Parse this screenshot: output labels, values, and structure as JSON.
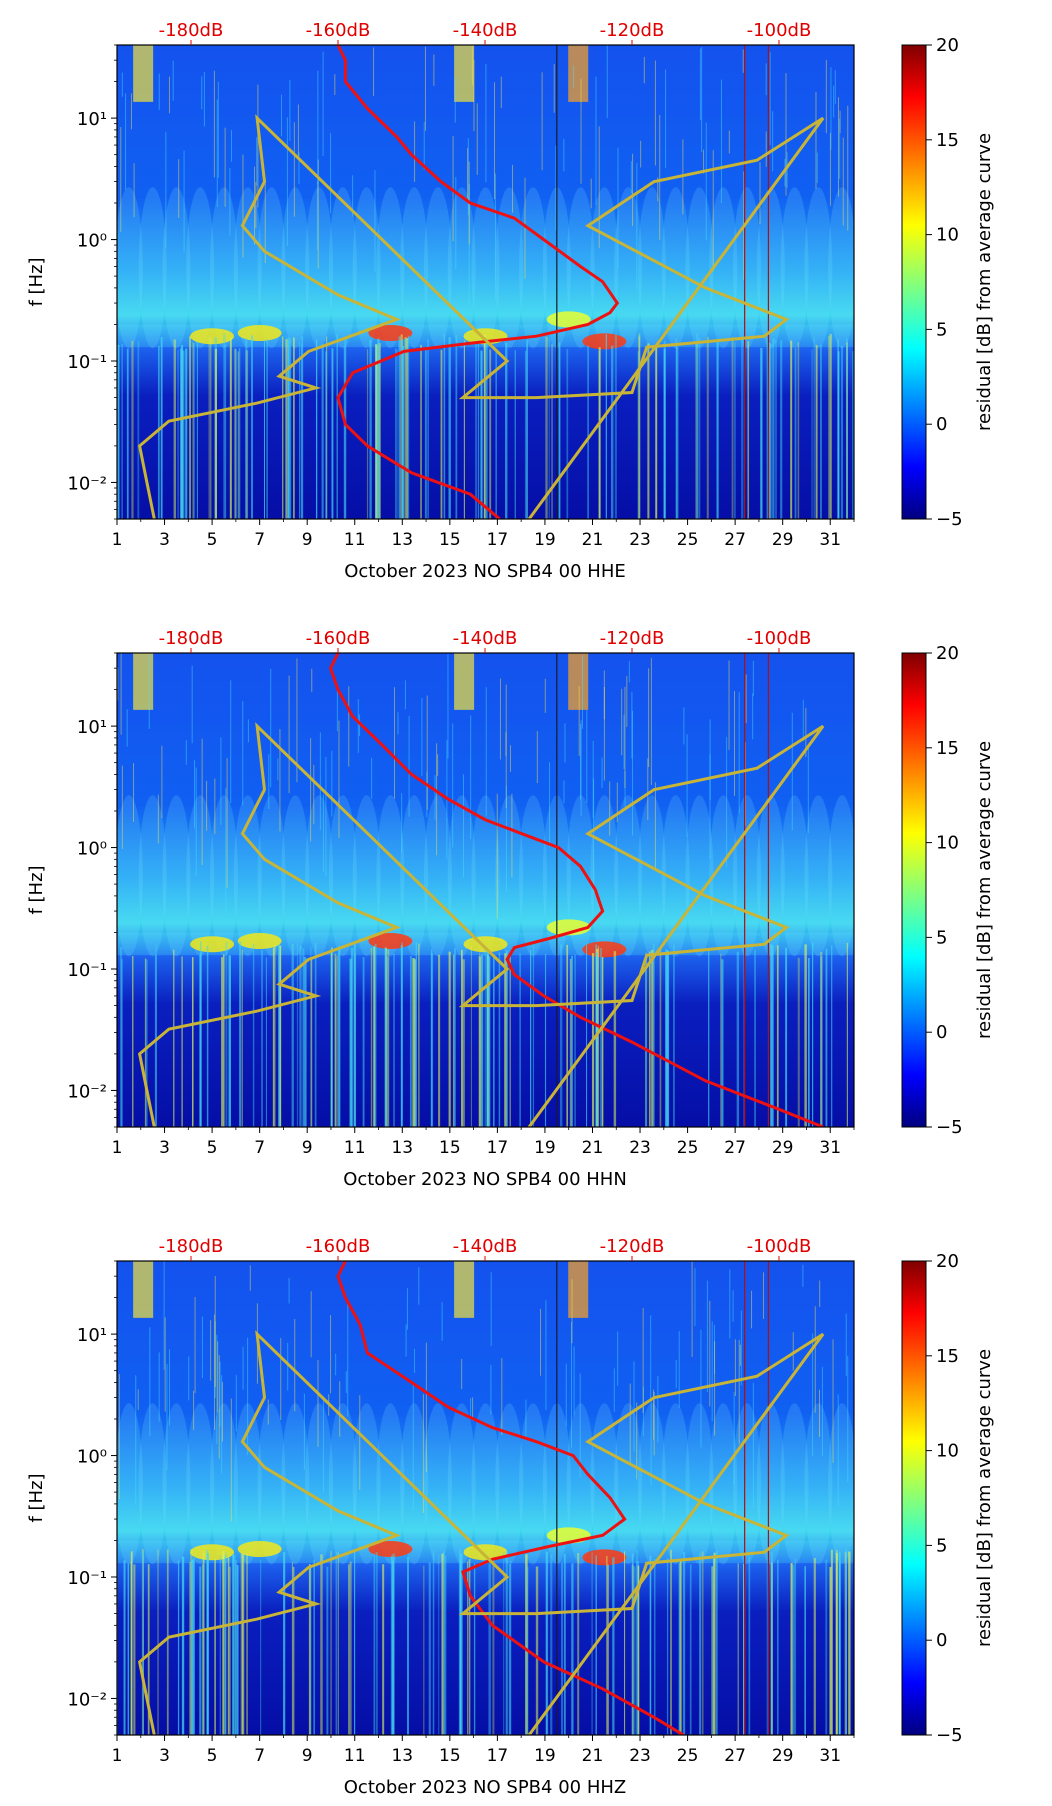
{
  "chart_data": [
    {
      "type": "heatmap",
      "xlabel": "October 2023 NO SPB4 00 HHE",
      "ylabel": "f [Hz]",
      "xlim": [
        1,
        32
      ],
      "ylim_hz": [
        0.005,
        40
      ],
      "x_ticks": [
        "1",
        "3",
        "5",
        "7",
        "9",
        "11",
        "13",
        "15",
        "17",
        "19",
        "21",
        "23",
        "25",
        "27",
        "29",
        "31"
      ],
      "y_ticks": [
        "10⁻²",
        "10⁻¹",
        "10⁰",
        "10¹"
      ],
      "top_ticks": [
        "-180dB",
        "-160dB",
        "-140dB",
        "-120dB",
        "-100dB"
      ],
      "colorbar": {
        "label": "residual [dB] from average curve",
        "range": [
          -5,
          20
        ],
        "ticks": [
          "−5",
          "0",
          "5",
          "10",
          "15",
          "20"
        ]
      },
      "series": [
        {
          "name": "red_average_curve_dB",
          "points": [
            [
              -160,
              40
            ],
            [
              -159,
              30
            ],
            [
              -159,
              20
            ],
            [
              -156,
              12
            ],
            [
              -152,
              7
            ],
            [
              -150,
              5
            ],
            [
              -146,
              3
            ],
            [
              -142,
              2
            ],
            [
              -136,
              1.5
            ],
            [
              -132,
              1
            ],
            [
              -127,
              0.6
            ],
            [
              -124,
              0.45
            ],
            [
              -122,
              0.3
            ],
            [
              -123,
              0.25
            ],
            [
              -126,
              0.2
            ],
            [
              -133,
              0.16
            ],
            [
              -142,
              0.14
            ],
            [
              -151,
              0.12
            ],
            [
              -158,
              0.08
            ],
            [
              -160,
              0.05
            ],
            [
              -159,
              0.03
            ],
            [
              -156,
              0.02
            ],
            [
              -150,
              0.012
            ],
            [
              -142,
              0.008
            ],
            [
              -138,
              0.005
            ]
          ]
        },
        {
          "name": "yellow_noise_model_dB",
          "points": [
            [
              -185,
              0.005
            ],
            [
              -186,
              0.01
            ],
            [
              -187,
              0.02
            ],
            [
              -183,
              0.032
            ],
            [
              -171,
              0.045
            ],
            [
              -163,
              0.06
            ],
            [
              -168,
              0.075
            ],
            [
              -164,
              0.12
            ],
            [
              -152,
              0.22
            ],
            [
              -160,
              0.35
            ],
            [
              -170,
              0.8
            ],
            [
              -173,
              1.3
            ],
            [
              -170,
              3
            ],
            [
              -171,
              10
            ],
            [
              -137,
              0.1
            ],
            [
              -143,
              0.05
            ],
            [
              -133,
              0.05
            ],
            [
              -120,
              0.055
            ],
            [
              -118,
              0.13
            ],
            [
              -102,
              0.16
            ],
            [
              -99,
              0.22
            ],
            [
              -110,
              0.4
            ],
            [
              -126,
              1.3
            ],
            [
              -117,
              3
            ],
            [
              -103,
              4.5
            ],
            [
              -94,
              10
            ],
            [
              -134,
              0.005
            ]
          ]
        }
      ]
    },
    {
      "type": "heatmap",
      "xlabel": "October 2023 NO SPB4 00 HHN",
      "ylabel": "f [Hz]",
      "xlim": [
        1,
        32
      ],
      "ylim_hz": [
        0.005,
        40
      ],
      "x_ticks": [
        "1",
        "3",
        "5",
        "7",
        "9",
        "11",
        "13",
        "15",
        "17",
        "19",
        "21",
        "23",
        "25",
        "27",
        "29",
        "31"
      ],
      "y_ticks": [
        "10⁻²",
        "10⁻¹",
        "10⁰",
        "10¹"
      ],
      "top_ticks": [
        "-180dB",
        "-160dB",
        "-140dB",
        "-120dB",
        "-100dB"
      ],
      "colorbar": {
        "label": "residual [dB] from average curve",
        "range": [
          -5,
          20
        ],
        "ticks": [
          "−5",
          "0",
          "5",
          "10",
          "15",
          "20"
        ]
      },
      "series": [
        {
          "name": "red_average_curve_dB",
          "points": [
            [
              -160,
              40
            ],
            [
              -161,
              30
            ],
            [
              -160,
              20
            ],
            [
              -158,
              12
            ],
            [
              -154,
              7
            ],
            [
              -150,
              4
            ],
            [
              -145,
              2.5
            ],
            [
              -140,
              1.7
            ],
            [
              -135,
              1.3
            ],
            [
              -130,
              1
            ],
            [
              -127,
              0.7
            ],
            [
              -125,
              0.45
            ],
            [
              -124,
              0.3
            ],
            [
              -126,
              0.22
            ],
            [
              -131,
              0.18
            ],
            [
              -136,
              0.15
            ],
            [
              -137,
              0.12
            ],
            [
              -136,
              0.09
            ],
            [
              -132,
              0.06
            ],
            [
              -127,
              0.04
            ],
            [
              -120,
              0.025
            ],
            [
              -110,
              0.012
            ],
            [
              -100,
              0.007
            ],
            [
              -94,
              0.005
            ]
          ]
        },
        {
          "name": "yellow_noise_model_dB",
          "points": [
            [
              -185,
              0.005
            ],
            [
              -186,
              0.01
            ],
            [
              -187,
              0.02
            ],
            [
              -183,
              0.032
            ],
            [
              -171,
              0.045
            ],
            [
              -163,
              0.06
            ],
            [
              -168,
              0.075
            ],
            [
              -164,
              0.12
            ],
            [
              -152,
              0.22
            ],
            [
              -160,
              0.35
            ],
            [
              -170,
              0.8
            ],
            [
              -173,
              1.3
            ],
            [
              -170,
              3
            ],
            [
              -171,
              10
            ],
            [
              -137,
              0.1
            ],
            [
              -143,
              0.05
            ],
            [
              -133,
              0.05
            ],
            [
              -120,
              0.055
            ],
            [
              -118,
              0.13
            ],
            [
              -102,
              0.16
            ],
            [
              -99,
              0.22
            ],
            [
              -110,
              0.4
            ],
            [
              -126,
              1.3
            ],
            [
              -117,
              3
            ],
            [
              -103,
              4.5
            ],
            [
              -94,
              10
            ],
            [
              -134,
              0.005
            ]
          ]
        }
      ]
    },
    {
      "type": "heatmap",
      "xlabel": "October 2023 NO SPB4 00 HHZ",
      "ylabel": "f [Hz]",
      "xlim": [
        1,
        32
      ],
      "ylim_hz": [
        0.005,
        40
      ],
      "x_ticks": [
        "1",
        "3",
        "5",
        "7",
        "9",
        "11",
        "13",
        "15",
        "17",
        "19",
        "21",
        "23",
        "25",
        "27",
        "29",
        "31"
      ],
      "y_ticks": [
        "10⁻²",
        "10⁻¹",
        "10⁰",
        "10¹"
      ],
      "top_ticks": [
        "-180dB",
        "-160dB",
        "-140dB",
        "-120dB",
        "-100dB"
      ],
      "colorbar": {
        "label": "residual [dB] from average curve",
        "range": [
          -5,
          20
        ],
        "ticks": [
          "−5",
          "0",
          "5",
          "10",
          "15",
          "20"
        ]
      },
      "series": [
        {
          "name": "red_average_curve_dB",
          "points": [
            [
              -159,
              40
            ],
            [
              -160,
              30
            ],
            [
              -159,
              20
            ],
            [
              -157,
              12
            ],
            [
              -156,
              7
            ],
            [
              -150,
              4
            ],
            [
              -145,
              2.5
            ],
            [
              -139,
              1.7
            ],
            [
              -133,
              1.3
            ],
            [
              -128,
              1
            ],
            [
              -126,
              0.7
            ],
            [
              -123,
              0.45
            ],
            [
              -121,
              0.3
            ],
            [
              -124,
              0.22
            ],
            [
              -131,
              0.18
            ],
            [
              -139,
              0.14
            ],
            [
              -143,
              0.11
            ],
            [
              -142,
              0.07
            ],
            [
              -139,
              0.04
            ],
            [
              -132,
              0.02
            ],
            [
              -124,
              0.012
            ],
            [
              -117,
              0.007
            ],
            [
              -113,
              0.005
            ]
          ]
        },
        {
          "name": "yellow_noise_model_dB",
          "points": [
            [
              -185,
              0.005
            ],
            [
              -186,
              0.01
            ],
            [
              -187,
              0.02
            ],
            [
              -183,
              0.032
            ],
            [
              -171,
              0.045
            ],
            [
              -163,
              0.06
            ],
            [
              -168,
              0.075
            ],
            [
              -164,
              0.12
            ],
            [
              -152,
              0.22
            ],
            [
              -160,
              0.35
            ],
            [
              -170,
              0.8
            ],
            [
              -173,
              1.3
            ],
            [
              -170,
              3
            ],
            [
              -171,
              10
            ],
            [
              -137,
              0.1
            ],
            [
              -143,
              0.05
            ],
            [
              -133,
              0.05
            ],
            [
              -120,
              0.055
            ],
            [
              -118,
              0.13
            ],
            [
              -102,
              0.16
            ],
            [
              -99,
              0.22
            ],
            [
              -110,
              0.4
            ],
            [
              -126,
              1.3
            ],
            [
              -117,
              3
            ],
            [
              -103,
              4.5
            ],
            [
              -94,
              10
            ],
            [
              -134,
              0.005
            ]
          ]
        }
      ]
    }
  ]
}
